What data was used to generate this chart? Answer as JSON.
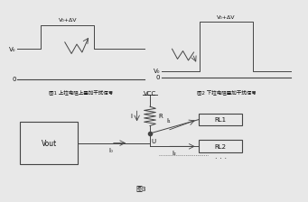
{
  "fig1_label": "图1 上拉电阻上叠加干扰信号",
  "fig2_label": "图2 下拉电阻叠加干扰信号",
  "fig3_label": "图3",
  "vcc_label": "VCC",
  "R_label": "R",
  "I_label": "I",
  "I0_label": "I₀",
  "I1_label": "I₁",
  "I2_label": "I₂",
  "U_label": "U",
  "Vout_label": "Vout",
  "RL1_label": "RL1",
  "RL2_label": "RL2",
  "Va_label": "V₀",
  "Va2_label": "V₀",
  "zero_label": "0",
  "Va_plus_dv_label": "V₀+ΔV",
  "Va2_plus_dv_label": "V₀+ΔV",
  "bg_color": "#e8e8e8",
  "line_color": "#444444",
  "text_color": "#111111",
  "white": "#ffffff"
}
